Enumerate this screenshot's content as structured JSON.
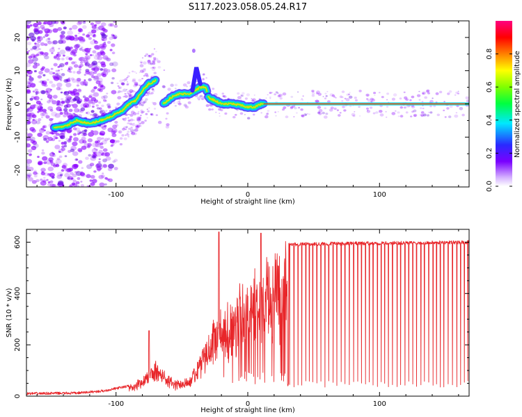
{
  "title": "S117.2023.058.05.24.R17",
  "chart_data": [
    {
      "type": "heatmap",
      "xlabel": "Height of straight line (km)",
      "ylabel": "Frequency (Hz)",
      "xlim": [
        -168,
        168
      ],
      "ylim": [
        -25,
        25
      ],
      "xticks": [
        -100,
        0,
        100
      ],
      "yticks": [
        20,
        10,
        0,
        -10,
        -20
      ],
      "grid": false,
      "ridge": [
        [
          -147,
          -7
        ],
        [
          -140,
          -7
        ],
        [
          -130,
          -5
        ],
        [
          -120,
          -6
        ],
        [
          -112,
          -5
        ],
        [
          -105,
          -4
        ],
        [
          -100,
          -3
        ],
        [
          -95,
          -2
        ],
        [
          -90,
          0
        ],
        [
          -85,
          1
        ],
        [
          -80,
          4
        ],
        [
          -75,
          6
        ],
        [
          -70,
          7
        ],
        [
          -64,
          0
        ],
        [
          -58,
          2
        ],
        [
          -52,
          3
        ],
        [
          -45,
          3
        ],
        [
          -40,
          4
        ],
        [
          -36,
          5
        ],
        [
          -32,
          5
        ],
        [
          -30,
          2
        ],
        [
          -25,
          1
        ],
        [
          -20,
          0
        ],
        [
          -10,
          0
        ],
        [
          0,
          -1
        ],
        [
          5,
          -1
        ],
        [
          10,
          0
        ],
        [
          20,
          0
        ],
        [
          168,
          0
        ]
      ],
      "colorbar": {
        "label": "Normalized spectral amplitude",
        "range": [
          0,
          1
        ],
        "ticks": [
          "0.0",
          "0.2",
          "0.4",
          "0.6",
          "0.8"
        ]
      },
      "colors": {
        "line": "#2e8a8a",
        "scatter": "#8a00ff"
      }
    },
    {
      "type": "line",
      "xlabel": "Height of straight line (km)",
      "ylabel": "SNR (10 * v/v)",
      "xlim": [
        -168,
        168
      ],
      "ylim": [
        0,
        650
      ],
      "xticks": [
        -100,
        0,
        100
      ],
      "yticks": [
        0,
        200,
        400,
        600
      ],
      "grid": false,
      "series": [
        {
          "color": "#e8262a",
          "envelope": [
            [
              -168,
              10
            ],
            [
              -130,
              12
            ],
            [
              -110,
              20
            ],
            [
              -100,
              30
            ],
            [
              -90,
              40
            ],
            [
              -80,
              70
            ],
            [
              -70,
              140
            ],
            [
              -65,
              100
            ],
            [
              -55,
              60
            ],
            [
              -45,
              70
            ],
            [
              -40,
              130
            ],
            [
              -35,
              180
            ],
            [
              -30,
              240
            ],
            [
              -25,
              300
            ],
            [
              -20,
              330
            ],
            [
              -15,
              360
            ],
            [
              -10,
              390
            ],
            [
              -5,
              430
            ],
            [
              0,
              460
            ],
            [
              5,
              490
            ],
            [
              10,
              510
            ],
            [
              15,
              530
            ],
            [
              20,
              550
            ],
            [
              25,
              575
            ],
            [
              30,
              590
            ],
            [
              40,
              592
            ],
            [
              60,
              594
            ],
            [
              100,
              596
            ],
            [
              168,
              600
            ]
          ],
          "spikes": [
            [
              -75,
              255
            ],
            [
              -22,
              640
            ],
            [
              10,
              635
            ]
          ]
        }
      ]
    }
  ]
}
